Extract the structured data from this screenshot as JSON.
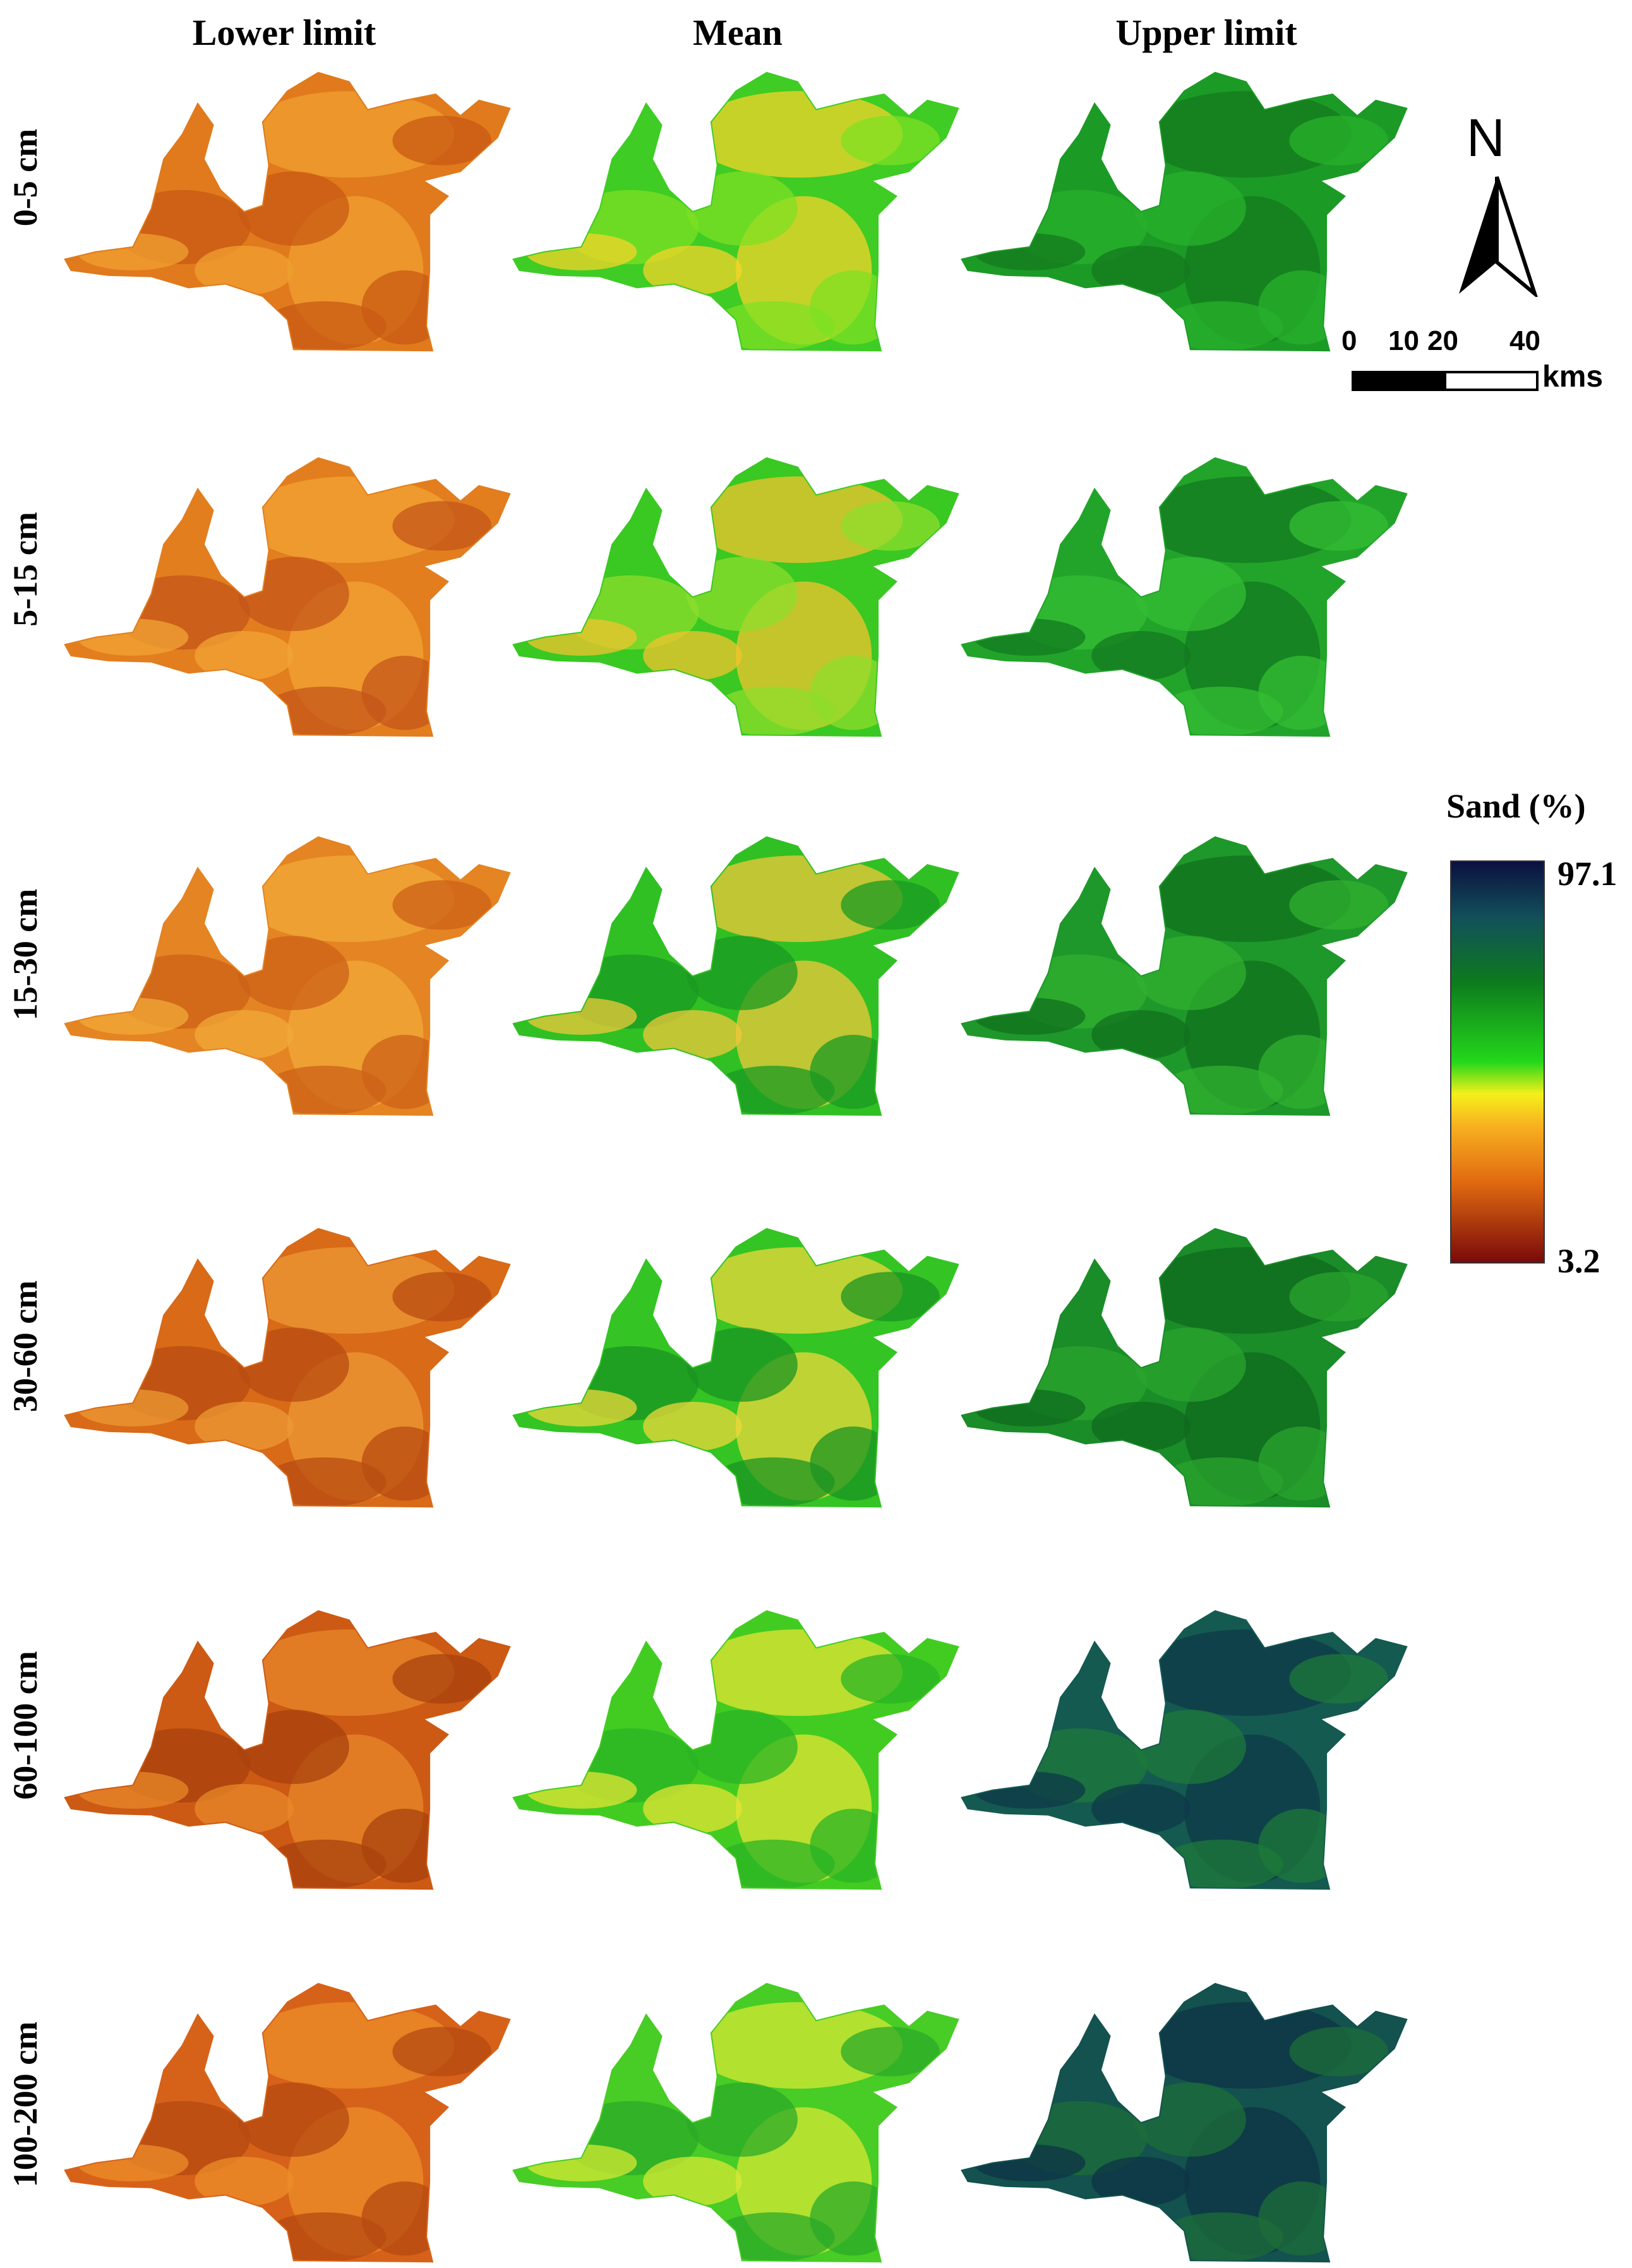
{
  "columns": [
    "Lower limit",
    "Mean",
    "Upper limit"
  ],
  "rows": [
    "0-5 cm",
    "5-15 cm",
    "15-30 cm",
    "30-60 cm",
    "60-100 cm",
    "100-200 cm"
  ],
  "north_label": "N",
  "scale": {
    "ticks": [
      "0",
      "10",
      "20",
      "40"
    ],
    "unit": "kms"
  },
  "legend": {
    "title": "Sand (%)",
    "max_label": "97.1",
    "min_label": "3.2",
    "stops": [
      {
        "offset": 0.0,
        "color": "#0b1040"
      },
      {
        "offset": 0.14,
        "color": "#12505a"
      },
      {
        "offset": 0.3,
        "color": "#0d7a1e"
      },
      {
        "offset": 0.5,
        "color": "#24d81a"
      },
      {
        "offset": 0.58,
        "color": "#f4f01a"
      },
      {
        "offset": 0.66,
        "color": "#f8b020"
      },
      {
        "offset": 0.8,
        "color": "#e06a10"
      },
      {
        "offset": 1.0,
        "color": "#7a0a0a"
      }
    ]
  },
  "panels": [
    {
      "depth": "0-5 cm",
      "stat": "Lower limit",
      "base": "#e07a1c",
      "patches": [
        "#f0a030",
        "#c85a14"
      ]
    },
    {
      "depth": "0-5 cm",
      "stat": "Mean",
      "base": "#3fcc24",
      "patches": [
        "#f4d42a",
        "#7ee023"
      ]
    },
    {
      "depth": "0-5 cm",
      "stat": "Upper limit",
      "base": "#1c9a26",
      "patches": [
        "#137a1e",
        "#28b02c"
      ]
    },
    {
      "depth": "5-15 cm",
      "stat": "Lower limit",
      "base": "#e27e1e",
      "patches": [
        "#f2a434",
        "#c4561a"
      ]
    },
    {
      "depth": "5-15 cm",
      "stat": "Mean",
      "base": "#3ac822",
      "patches": [
        "#f2c42e",
        "#8ede2c"
      ]
    },
    {
      "depth": "5-15 cm",
      "stat": "Upper limit",
      "base": "#22a42a",
      "patches": [
        "#137a20",
        "#34be34"
      ]
    },
    {
      "depth": "15-30 cm",
      "stat": "Lower limit",
      "base": "#e48422",
      "patches": [
        "#f2aa3a",
        "#cc6218"
      ]
    },
    {
      "depth": "15-30 cm",
      "stat": "Mean",
      "base": "#30c024",
      "patches": [
        "#f0c83a",
        "#1a9a22"
      ]
    },
    {
      "depth": "15-30 cm",
      "stat": "Upper limit",
      "base": "#1e982a",
      "patches": [
        "#11701e",
        "#30b030"
      ]
    },
    {
      "depth": "30-60 cm",
      "stat": "Lower limit",
      "base": "#d86a18",
      "patches": [
        "#ec9a34",
        "#b84c12"
      ]
    },
    {
      "depth": "30-60 cm",
      "stat": "Mean",
      "base": "#34c424",
      "patches": [
        "#eed83a",
        "#1a9422"
      ]
    },
    {
      "depth": "30-60 cm",
      "stat": "Upper limit",
      "base": "#1a8c28",
      "patches": [
        "#0f6a1e",
        "#2aa42e"
      ]
    },
    {
      "depth": "60-100 cm",
      "stat": "Lower limit",
      "base": "#cc5a14",
      "patches": [
        "#e8882a",
        "#a8420e"
      ]
    },
    {
      "depth": "60-100 cm",
      "stat": "Mean",
      "base": "#42cc22",
      "patches": [
        "#e4e434",
        "#2ab424"
      ]
    },
    {
      "depth": "60-100 cm",
      "stat": "Upper limit",
      "base": "#145a50",
      "patches": [
        "#0e3a4a",
        "#1e7a3a"
      ]
    },
    {
      "depth": "100-200 cm",
      "stat": "Lower limit",
      "base": "#d6621a",
      "patches": [
        "#ec8e2a",
        "#b64a12"
      ]
    },
    {
      "depth": "100-200 cm",
      "stat": "Mean",
      "base": "#48cc26",
      "patches": [
        "#d6e834",
        "#2aaa28"
      ]
    },
    {
      "depth": "100-200 cm",
      "stat": "Upper limit",
      "base": "#13524e",
      "patches": [
        "#0d3446",
        "#1e6e3a"
      ]
    }
  ]
}
